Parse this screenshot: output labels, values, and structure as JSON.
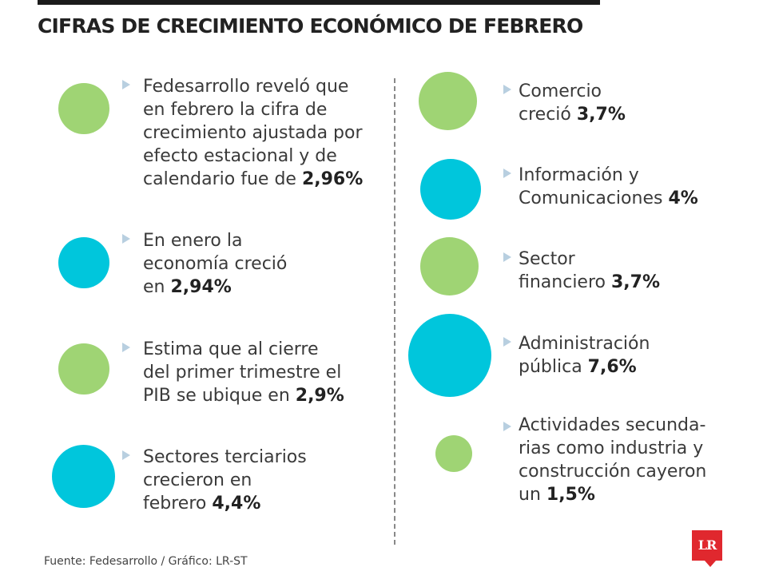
{
  "title": "CIFRAS DE CRECIMIENTO ECONÓMICO DE FEBRERO",
  "colors": {
    "green": "#9fd474",
    "cyan": "#00c6dc",
    "bullet": "#b8cfe0",
    "logo": "#e0282e"
  },
  "left_items": [
    {
      "lines": [
        "Fedesarrollo reveló que",
        "en febrero la cifra de",
        "crecimiento ajustada por",
        "efecto estacional y de",
        "calendario fue de "
      ],
      "value": "2,96%",
      "color": "green",
      "display": 2.96
    },
    {
      "lines": [
        "En enero la",
        "economía creció",
        "en "
      ],
      "value": "2,94%",
      "color": "cyan",
      "display": 2.94
    },
    {
      "lines": [
        "Estima que al cierre",
        "del primer trimestre el",
        "PIB se ubique en "
      ],
      "value": "2,9%",
      "color": "green",
      "display": 2.9
    },
    {
      "lines": [
        "Sectores terciarios",
        "crecieron en",
        "febrero "
      ],
      "value": "4,4%",
      "color": "cyan",
      "display": 4.4
    }
  ],
  "right_items": [
    {
      "lines": [
        "Comercio",
        "creció "
      ],
      "value": "3,7%",
      "color": "green",
      "display": 3.7
    },
    {
      "lines": [
        "Información y",
        "Comunicaciones "
      ],
      "value": "4%",
      "color": "cyan",
      "display": 4
    },
    {
      "lines": [
        "Sector",
        "financiero "
      ],
      "value": "3,7%",
      "color": "green",
      "display": 3.7
    },
    {
      "lines": [
        "Administración",
        "pública "
      ],
      "value": "7,6%",
      "color": "cyan",
      "display": 7.6
    },
    {
      "lines": [
        "Actividades secunda-",
        "rias como industria y",
        "construcción cayeron",
        "un "
      ],
      "value": "1,5%",
      "color": "green",
      "display": 1.5
    }
  ],
  "footer": "Fuente: Fedesarrollo / Gráfico: LR-ST",
  "logo_text": "LR"
}
